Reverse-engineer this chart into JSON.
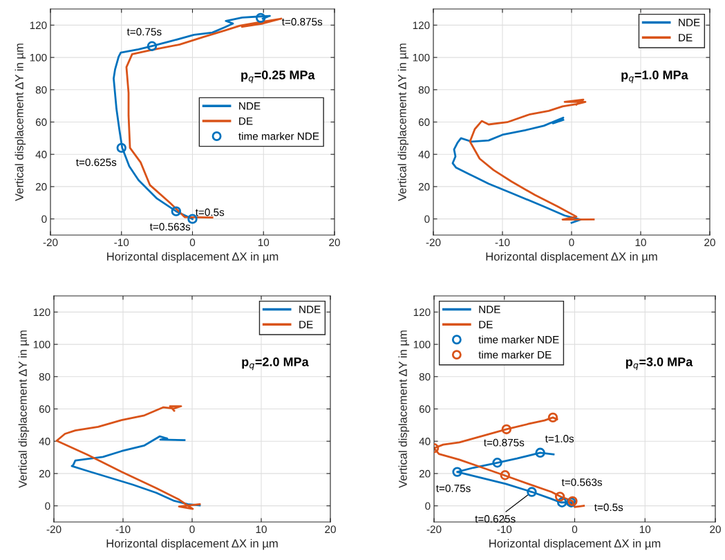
{
  "chart_data": [
    {
      "type": "line",
      "xlabel": "Horizontal displacement ΔX in µm",
      "ylabel": "Vertical displacement ΔY in µm",
      "xlim": [
        -20,
        20
      ],
      "ylim": [
        -10,
        130
      ],
      "xticks": [
        -20,
        -10,
        0,
        10,
        20
      ],
      "yticks": [
        0,
        20,
        40,
        60,
        80,
        100,
        120
      ],
      "grid": true,
      "legend": "right",
      "series": [
        {
          "name": "NDE",
          "color": "#0072bd",
          "x": [
            0,
            -2.3,
            -5,
            -7.6,
            -8.9,
            -9.9,
            -10.3,
            -10.7,
            -11.1,
            -10.9,
            -10.4,
            -10.1,
            -7.6,
            -5.7,
            -3.1,
            0.2,
            2.8,
            4.7,
            5.7,
            4.7,
            7,
            9.6,
            10.9,
            9.9
          ],
          "values": [
            0,
            4.7,
            12.6,
            24,
            32.6,
            44,
            55.4,
            68,
            87,
            92.6,
            100.4,
            103,
            105,
            107,
            110,
            114,
            115.4,
            119,
            121,
            122.6,
            124.7,
            125.4,
            125.7,
            124
          ]
        },
        {
          "name": "DE",
          "color": "#d95319",
          "x": [
            2.8,
            -1.1,
            -3.1,
            -6,
            -7.3,
            -8.8,
            -9,
            -9,
            -9.3,
            -8.5,
            -5.7,
            -1.8,
            1.5,
            4.7,
            6.7,
            9.6,
            12.5,
            9.9,
            7
          ],
          "values": [
            0.9,
            1.1,
            9.7,
            21,
            35,
            44,
            64,
            78,
            94,
            102,
            104.7,
            108,
            112.6,
            116.9,
            119.7,
            121.9,
            124,
            121,
            119
          ]
        },
        {
          "name": "time marker NDE",
          "type": "scatter",
          "marker": "circle",
          "color": "#0072bd",
          "x": [
            0,
            -2.3,
            -10,
            -5.7,
            9.6
          ],
          "values": [
            0,
            4.7,
            44,
            107,
            124.5
          ]
        }
      ],
      "annotations": [
        "p$_{q}$=0.25 MPa",
        {
          "text": "t=0.5s",
          "x": 0,
          "y": 0
        },
        {
          "text": "t=0.563s",
          "x": -2.3,
          "y": 4.7
        },
        {
          "text": "t=0.625s",
          "x": -10,
          "y": 44
        },
        {
          "text": "t=0.75s",
          "x": -5.7,
          "y": 107
        },
        {
          "text": "t=0.875s",
          "x": 9.6,
          "y": 124.5
        }
      ]
    },
    {
      "type": "line",
      "xlabel": "Horizontal displacement ΔX in µm",
      "ylabel": "Vertical displacement ΔY in µm",
      "xlim": [
        -20,
        20
      ],
      "ylim": [
        -10,
        130
      ],
      "xticks": [
        -20,
        -10,
        0,
        10,
        20
      ],
      "yticks": [
        0,
        20,
        40,
        60,
        80,
        100,
        120
      ],
      "grid": true,
      "legend": "top right",
      "series": [
        {
          "name": "NDE",
          "color": "#0072bd",
          "x": [
            0,
            1.3,
            -1,
            -4,
            -8.7,
            -12,
            -14.7,
            -16.7,
            -17.2,
            -16.8,
            -17,
            -16.5,
            -16,
            -14.5,
            -12,
            -10,
            -6.7,
            -4,
            -2,
            -1.2,
            -2.7,
            -1.2
          ],
          "values": [
            -2.4,
            -0.4,
            2.1,
            7.7,
            16,
            21.8,
            27.5,
            31.7,
            34.5,
            38.7,
            43,
            47.2,
            50,
            47.9,
            48.6,
            52.1,
            54.9,
            57.7,
            61.3,
            62.7,
            59.2,
            61.3
          ]
        },
        {
          "name": "DE",
          "color": "#d95319",
          "x": [
            3.2,
            -1.3,
            0.7,
            -2,
            -5.3,
            -8.7,
            -11.3,
            -13.3,
            -14.7,
            -14,
            -13,
            -12,
            -9.3,
            -6,
            -3.3,
            -1.3,
            0.7,
            2,
            -1,
            1.7,
            0.7
          ],
          "values": [
            -0.3,
            -0.4,
            1.4,
            7.7,
            14.8,
            23.2,
            30.3,
            37.3,
            47.9,
            55.6,
            60.6,
            58.5,
            59.9,
            64.8,
            66.9,
            69.7,
            71.1,
            72.5,
            72.5,
            73.9,
            70.8
          ]
        }
      ],
      "annotations": [
        "p$_{q}$=1.0 MPa"
      ]
    },
    {
      "type": "line",
      "xlabel": "Horizontal displacement ΔX in µm",
      "ylabel": "Vertical displacement ΔY in µm",
      "xlim": [
        -20,
        20
      ],
      "ylim": [
        -10,
        130
      ],
      "xticks": [
        -20,
        -10,
        0,
        10,
        20
      ],
      "yticks": [
        0,
        20,
        40,
        60,
        80,
        100,
        120
      ],
      "grid": true,
      "legend": "top right",
      "series": [
        {
          "name": "NDE",
          "color": "#0072bd",
          "x": [
            -1.1,
            -4.6,
            -3.6,
            -4.7,
            -6.9,
            -10.2,
            -12.9,
            -16.9,
            -17.2,
            -17.4,
            -15.2,
            -11.9,
            -8.6,
            -5.2,
            -2.6,
            -0.6,
            1.1
          ],
          "values": [
            40.7,
            41,
            41.7,
            43,
            37.4,
            33.9,
            30.3,
            28.1,
            25.3,
            24.6,
            21.7,
            17.4,
            13.1,
            8.1,
            3.1,
            1,
            0.3
          ]
        },
        {
          "name": "DE",
          "color": "#d95319",
          "x": [
            1.1,
            -1.9,
            0.1,
            -1.9,
            -5.2,
            -10.2,
            -15.2,
            -19.6,
            -18.4,
            -16.9,
            -13.6,
            -10.2,
            -6.9,
            -4.2,
            -2.6,
            -1.6,
            -3.2,
            -2.6
          ],
          "values": [
            1,
            -0.4,
            -1.9,
            3.9,
            11,
            21,
            31.7,
            40.3,
            44.6,
            46.7,
            48.9,
            53.1,
            56,
            61,
            60.3,
            61.7,
            61.7,
            58.9
          ]
        }
      ],
      "annotations": [
        "p$_{q}$=2.0 MPa"
      ]
    },
    {
      "type": "line",
      "xlabel": "Horizontal displacement ΔX in µm",
      "ylabel": "Vertical displacement ΔY in µm",
      "xlim": [
        -20,
        20
      ],
      "ylim": [
        -10,
        130
      ],
      "xticks": [
        -20,
        -10,
        0,
        10,
        20
      ],
      "yticks": [
        0,
        20,
        40,
        60,
        80,
        100,
        120
      ],
      "grid": true,
      "legend": "top left",
      "series": [
        {
          "name": "NDE",
          "color": "#0072bd",
          "x": [
            -0.7,
            0,
            -2,
            -3.3,
            -6.1,
            -9.8,
            -13.1,
            -16.7,
            -14.4,
            -11,
            -8.2,
            -4.9,
            -3
          ],
          "values": [
            0.7,
            2.1,
            2.1,
            4.3,
            8.6,
            13.6,
            17.1,
            21,
            23.6,
            26.7,
            29.3,
            32.9,
            31.9
          ]
        },
        {
          "name": "DE",
          "color": "#d95319",
          "x": [
            1.3,
            0,
            -0.3,
            -2,
            -3.3,
            -6.6,
            -9.8,
            -13.1,
            -16.4,
            -19.3,
            -20,
            -18.7,
            -16.4,
            -13.4,
            -9.7,
            -6.6,
            -4.3,
            -3.1,
            -2.5
          ],
          "values": [
            0,
            -0.7,
            2.9,
            5.7,
            8.6,
            13.6,
            18.6,
            23.6,
            28.6,
            32.1,
            35.7,
            37.9,
            39.3,
            42.9,
            47.4,
            50.7,
            52.9,
            54.7,
            53.6
          ]
        },
        {
          "name": "time marker NDE",
          "type": "scatter",
          "marker": "circle",
          "color": "#0072bd",
          "x": [
            -0.5,
            -1.8,
            -6.1,
            -16.7,
            -11,
            -4.9
          ],
          "values": [
            2.1,
            2.1,
            8.6,
            21,
            26.7,
            32.9
          ]
        },
        {
          "name": "time marker DE",
          "type": "scatter",
          "marker": "circle",
          "color": "#d95319",
          "x": [
            -0.3,
            -2.1,
            -9.9,
            -20,
            -9.7,
            -3.1
          ],
          "values": [
            2.9,
            5.7,
            19,
            35.7,
            47.4,
            54.7
          ]
        }
      ],
      "annotations": [
        "p$_{q}$=3.0 MPa",
        {
          "text": "t=0.5s",
          "x": -0.5,
          "y": 2.1
        },
        {
          "text": "t=0.563s",
          "x": -2.1,
          "y": 5.7
        },
        {
          "text": "t=0.625s",
          "x": -6.1,
          "y": 8.6
        },
        {
          "text": "t=0.75s",
          "x": -16.7,
          "y": 21
        },
        {
          "text": "t=0.875s",
          "x": -11,
          "y": 26.7
        },
        {
          "text": "t=1.0s",
          "x": -3.1,
          "y": 54.7
        }
      ]
    }
  ]
}
